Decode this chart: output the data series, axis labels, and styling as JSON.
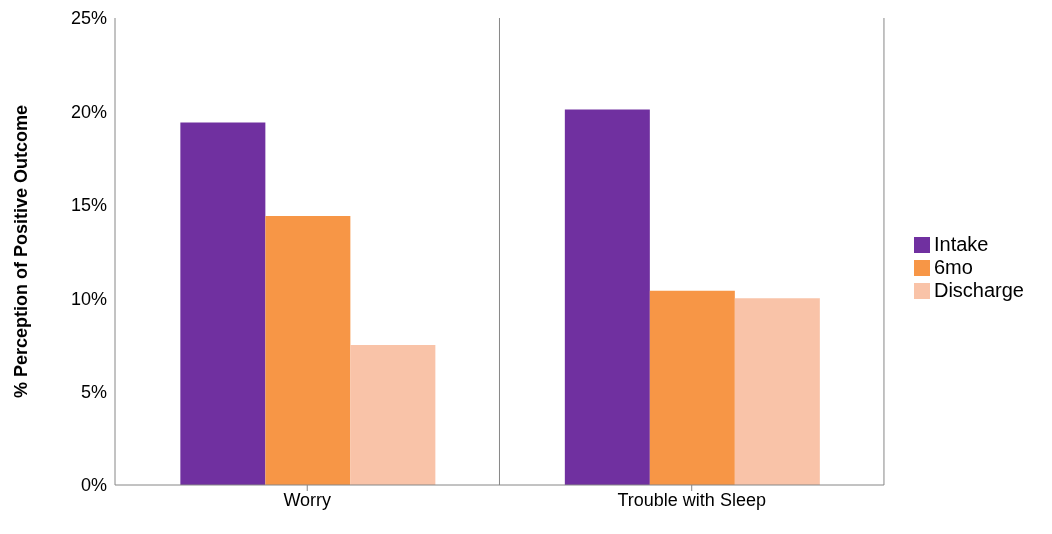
{
  "chart_data": {
    "type": "bar",
    "ylabel": "% Perception of Positive Outcome",
    "categories": [
      "Worry",
      "Trouble with Sleep"
    ],
    "series": [
      {
        "name": "Intake",
        "color": "#7030a0",
        "values": [
          19.4,
          20.1
        ]
      },
      {
        "name": "6mo",
        "color": "#f79646",
        "values": [
          14.4,
          10.4
        ]
      },
      {
        "name": "Discharge",
        "color": "#f9c3a8",
        "values": [
          7.5,
          10.0
        ]
      }
    ],
    "ylim": [
      0,
      25
    ],
    "yticks": [
      {
        "value": 0,
        "label": "0%"
      },
      {
        "value": 5,
        "label": "5%"
      },
      {
        "value": 10,
        "label": "10%"
      },
      {
        "value": 15,
        "label": "15%"
      },
      {
        "value": 20,
        "label": "20%"
      },
      {
        "value": 25,
        "label": "25%"
      }
    ],
    "grid": "x",
    "legend": "right"
  }
}
